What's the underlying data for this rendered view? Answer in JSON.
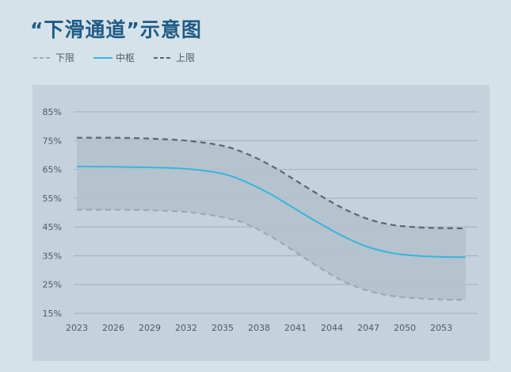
{
  "header": {
    "title": "“下滑通道”示意图"
  },
  "chart_data": {
    "type": "line",
    "title": "“下滑通道”示意图",
    "x_ticks": [
      "2023",
      "2026",
      "2029",
      "2032",
      "2035",
      "2038",
      "2041",
      "2044",
      "2047",
      "2050",
      "2053"
    ],
    "y_ticks": [
      "15%",
      "25%",
      "35%",
      "45%",
      "55%",
      "65%",
      "75%",
      "85%"
    ],
    "ylim": [
      15,
      85
    ],
    "xlim": [
      2023,
      2056
    ],
    "grid": true,
    "legend_position": "top-left",
    "band_color": "#b3c1cc",
    "series": [
      {
        "name": "下限",
        "style": "dashed",
        "color": "#a0a8b0",
        "x": [
          2023,
          2026,
          2029,
          2032,
          2035,
          2037,
          2039,
          2041,
          2043,
          2045,
          2047,
          2049,
          2051,
          2053,
          2055
        ],
        "y": [
          51,
          51,
          50.8,
          50.2,
          48.4,
          46,
          41.6,
          36.3,
          30.8,
          26,
          22.8,
          21,
          20.2,
          19.8,
          19.7
        ]
      },
      {
        "name": "中枢",
        "style": "solid",
        "color": "#3ab4dc",
        "x": [
          2023,
          2026,
          2029,
          2032,
          2035,
          2037,
          2039,
          2041,
          2043,
          2045,
          2047,
          2049,
          2051,
          2053,
          2055
        ],
        "y": [
          66,
          65.9,
          65.7,
          65.2,
          63.5,
          60.5,
          56.3,
          51.2,
          46.2,
          41.6,
          38,
          35.9,
          35,
          34.6,
          34.5
        ]
      },
      {
        "name": "上限",
        "style": "dashed",
        "color": "#5e666d",
        "x": [
          2023,
          2026,
          2029,
          2032,
          2035,
          2037,
          2039,
          2041,
          2043,
          2045,
          2047,
          2049,
          2051,
          2053,
          2055
        ],
        "y": [
          76,
          76,
          75.7,
          75,
          73.2,
          70.4,
          66.3,
          61.2,
          56,
          51.3,
          47.7,
          45.7,
          44.9,
          44.6,
          44.5
        ]
      }
    ]
  }
}
